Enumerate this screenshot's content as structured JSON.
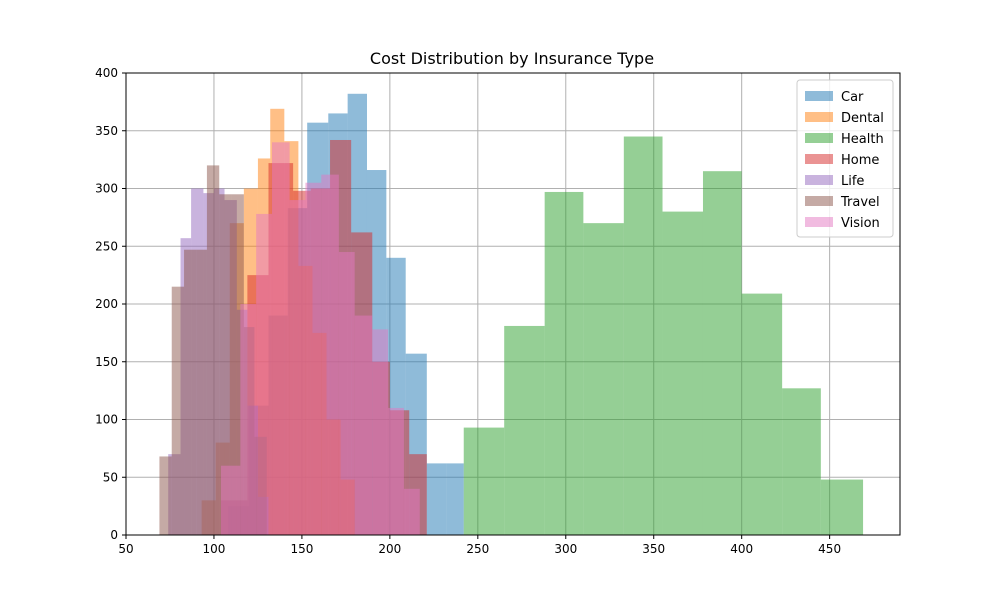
{
  "chart_data": {
    "type": "histogram",
    "title": "Cost Distribution by Insurance Type",
    "xlabel": "",
    "ylabel": "",
    "xlim": [
      50,
      490
    ],
    "ylim": [
      0,
      400
    ],
    "xticks": [
      50,
      100,
      150,
      200,
      250,
      300,
      350,
      400,
      450
    ],
    "yticks": [
      0,
      50,
      100,
      150,
      200,
      250,
      300,
      350,
      400
    ],
    "grid": true,
    "legend_position": "top-right",
    "bar_opacity": 0.5,
    "series": [
      {
        "name": "Car",
        "color": "#1f77b4",
        "bins": [
          [
            108,
            120,
            25
          ],
          [
            120,
            131,
            112
          ],
          [
            131,
            142,
            190
          ],
          [
            142,
            153,
            283
          ],
          [
            153,
            165,
            357
          ],
          [
            165,
            176,
            365
          ],
          [
            176,
            187,
            382
          ],
          [
            187,
            198,
            316
          ],
          [
            198,
            209,
            240
          ],
          [
            209,
            221,
            157
          ],
          [
            221,
            232,
            62
          ],
          [
            232,
            242,
            62
          ]
        ]
      },
      {
        "name": "Dental",
        "color": "#ff7f0e",
        "bins": [
          [
            93,
            101,
            30
          ],
          [
            101,
            109,
            80
          ],
          [
            109,
            117,
            270
          ],
          [
            117,
            125,
            300
          ],
          [
            125,
            132,
            326
          ],
          [
            132,
            140,
            369
          ],
          [
            140,
            148,
            341
          ],
          [
            148,
            156,
            233
          ],
          [
            156,
            164,
            175
          ],
          [
            164,
            172,
            100
          ],
          [
            172,
            180,
            48
          ]
        ]
      },
      {
        "name": "Health",
        "color": "#2ca02c",
        "bins": [
          [
            242,
            265,
            93
          ],
          [
            265,
            288,
            181
          ],
          [
            288,
            310,
            297
          ],
          [
            310,
            333,
            270
          ],
          [
            333,
            355,
            345
          ],
          [
            355,
            378,
            280
          ],
          [
            378,
            400,
            315
          ],
          [
            400,
            423,
            209
          ],
          [
            423,
            445,
            127
          ],
          [
            445,
            469,
            48
          ]
        ]
      },
      {
        "name": "Home",
        "color": "#d62728",
        "bins": [
          [
            104,
            119,
            30
          ],
          [
            119,
            131,
            225
          ],
          [
            131,
            145,
            322
          ],
          [
            145,
            155,
            298
          ],
          [
            155,
            166,
            300
          ],
          [
            166,
            178,
            342
          ],
          [
            178,
            190,
            262
          ],
          [
            190,
            200,
            150
          ],
          [
            200,
            211,
            108
          ],
          [
            211,
            221,
            70
          ]
        ]
      },
      {
        "name": "Life",
        "color": "#9467bd",
        "bins": [
          [
            74,
            81,
            70
          ],
          [
            81,
            87,
            257
          ],
          [
            87,
            94,
            300
          ],
          [
            94,
            100,
            296
          ],
          [
            100,
            106,
            300
          ],
          [
            106,
            113,
            290
          ],
          [
            113,
            119,
            195
          ],
          [
            119,
            125,
            112
          ],
          [
            125,
            131,
            33
          ]
        ]
      },
      {
        "name": "Travel",
        "color": "#8c564b",
        "bins": [
          [
            69,
            76,
            68
          ],
          [
            76,
            83,
            215
          ],
          [
            83,
            90,
            247
          ],
          [
            90,
            96,
            247
          ],
          [
            96,
            103,
            320
          ],
          [
            103,
            110,
            295
          ],
          [
            110,
            117,
            295
          ],
          [
            117,
            123,
            180
          ],
          [
            123,
            130,
            85
          ]
        ]
      },
      {
        "name": "Vision",
        "color": "#e377c2",
        "bins": [
          [
            104,
            115,
            60
          ],
          [
            115,
            124,
            200
          ],
          [
            124,
            133,
            278
          ],
          [
            133,
            143,
            340
          ],
          [
            143,
            152,
            290
          ],
          [
            152,
            161,
            305
          ],
          [
            161,
            171,
            312
          ],
          [
            171,
            180,
            245
          ],
          [
            180,
            190,
            190
          ],
          [
            190,
            199,
            178
          ],
          [
            199,
            208,
            110
          ],
          [
            208,
            217,
            40
          ]
        ]
      }
    ]
  }
}
